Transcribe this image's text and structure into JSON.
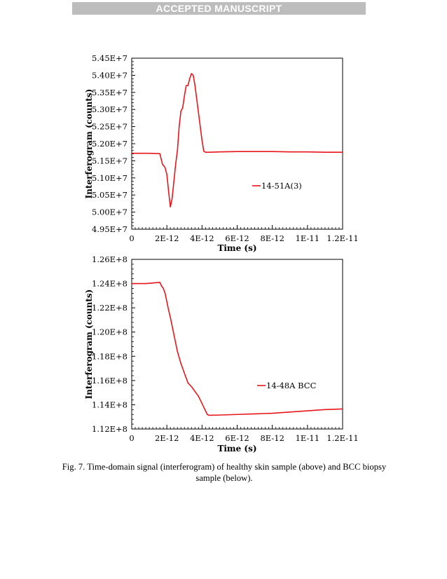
{
  "banner": "ACCEPTED MANUSCRIPT",
  "caption_line1": "Fig. 7. Time-domain signal (interferogram) of healthy skin sample (above) and BCC biopsy",
  "caption_line2": "sample (below).",
  "colors": {
    "series": "#e8161b",
    "axis": "#000000",
    "banner_bg": "#bdbdbd"
  },
  "chart_data": [
    {
      "type": "line",
      "xlabel": "Time (s)",
      "ylabel": "Interferogram (counts)",
      "xlim": [
        0,
        1.2e-11
      ],
      "ylim": [
        49500000.0,
        54500000.0
      ],
      "xticks": [
        0,
        2e-12,
        4e-12,
        6e-12,
        8e-12,
        1e-11,
        1.2e-11
      ],
      "xtick_labels": [
        "0",
        "2E-12",
        "4E-12",
        "6E-12",
        "8E-12",
        "1E-11",
        "1.2E-11"
      ],
      "yticks": [
        49500000.0,
        50000000.0,
        50500000.0,
        51000000.0,
        51500000.0,
        52000000.0,
        52500000.0,
        53000000.0,
        53500000.0,
        54000000.0,
        54500000.0
      ],
      "ytick_labels": [
        "4.95E+7",
        "5.00E+7",
        "5.05E+7",
        "5.10E+7",
        "5.15E+7",
        "5.20E+7",
        "5.25E+7",
        "5.30E+7",
        "5.35E+7",
        "5.40E+7",
        "5.45E+7"
      ],
      "grid": false,
      "legend_position": "right",
      "series": [
        {
          "name": "14-51A(3)",
          "x": [
            0,
            1e-12,
            1.6e-12,
            1.75e-12,
            1.9e-12,
            2e-12,
            2.1e-12,
            2.2e-12,
            2.3e-12,
            2.4e-12,
            2.5e-12,
            2.6e-12,
            2.7e-12,
            2.8e-12,
            2.9e-12,
            3e-12,
            3.1e-12,
            3.2e-12,
            3.3e-12,
            3.4e-12,
            3.5e-12,
            3.6e-12,
            3.7e-12,
            3.8e-12,
            3.9e-12,
            4e-12,
            4.1e-12,
            4.2e-12,
            4.3e-12,
            4.4e-12,
            5e-12,
            6e-12,
            7e-12,
            8e-12,
            9e-12,
            1e-11,
            1.1e-11,
            1.2e-11
          ],
          "y": [
            51720000.0,
            51720000.0,
            51710000.0,
            51400000.0,
            51300000.0,
            51100000.0,
            50600000.0,
            50150000.0,
            50400000.0,
            50900000.0,
            51400000.0,
            51800000.0,
            52500000.0,
            52950000.0,
            53050000.0,
            53400000.0,
            53700000.0,
            53700000.0,
            53900000.0,
            54050000.0,
            54000000.0,
            53700000.0,
            53300000.0,
            52900000.0,
            52500000.0,
            52100000.0,
            51780000.0,
            51750000.0,
            51750000.0,
            51750000.0,
            51760000.0,
            51770000.0,
            51770000.0,
            51770000.0,
            51760000.0,
            51760000.0,
            51750000.0,
            51750000.0
          ]
        }
      ]
    },
    {
      "type": "line",
      "xlabel": "Time (s)",
      "ylabel": "Interferogram (counts)",
      "xlim": [
        0,
        1.2e-11
      ],
      "ylim": [
        112000000.0,
        126000000.0
      ],
      "xticks": [
        0,
        2e-12,
        4e-12,
        6e-12,
        8e-12,
        1e-11,
        1.2e-11
      ],
      "xtick_labels": [
        "0",
        "2E-12",
        "4E-12",
        "6E-12",
        "8E-12",
        "1E-11",
        "1.2E-11"
      ],
      "yticks": [
        112000000.0,
        114000000.0,
        116000000.0,
        118000000.0,
        120000000.0,
        122000000.0,
        124000000.0,
        126000000.0
      ],
      "ytick_labels": [
        "1.12E+8",
        "1.14E+8",
        "1.16E+8",
        "1.18E+8",
        "1.20E+8",
        "1.22E+8",
        "1.24E+8",
        "1.26E+8"
      ],
      "grid": false,
      "legend_position": "right",
      "series": [
        {
          "name": "14-48A BCC",
          "x": [
            0,
            8e-13,
            1.6e-12,
            1.7e-12,
            1.8e-12,
            1.9e-12,
            2e-12,
            2.1e-12,
            2.2e-12,
            2.4e-12,
            2.6e-12,
            2.8e-12,
            3e-12,
            3.2e-12,
            3.4e-12,
            3.6e-12,
            3.8e-12,
            4e-12,
            4.2e-12,
            4.3e-12,
            4.4e-12,
            5e-12,
            6e-12,
            7e-12,
            8e-12,
            9e-12,
            1e-11,
            1.1e-11,
            1.2e-11
          ],
          "y": [
            124000000.0,
            124000000.0,
            124100000.0,
            123800000.0,
            123600000.0,
            123200000.0,
            122500000.0,
            121800000.0,
            121200000.0,
            119800000.0,
            118400000.0,
            117400000.0,
            116600000.0,
            115800000.0,
            115500000.0,
            115100000.0,
            114700000.0,
            114100000.0,
            113500000.0,
            113200000.0,
            113130000.0,
            113150000.0,
            113200000.0,
            113250000.0,
            113300000.0,
            113400000.0,
            113500000.0,
            113600000.0,
            113650000.0
          ]
        }
      ]
    }
  ]
}
